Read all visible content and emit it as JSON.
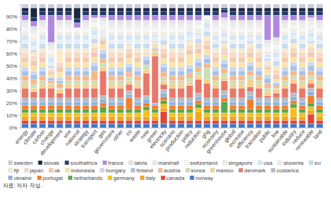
{
  "chart_data": {
    "type": "bar",
    "stacked": true,
    "grid": true,
    "legend": "bottom",
    "annotations": [
      "자료: 저자 작성."
    ],
    "categories": [
      "energy",
      "climate",
      "carbon",
      "change",
      "development",
      "use",
      "national",
      "strategy",
      "transport",
      "gas",
      "government",
      "other",
      "co",
      "waste",
      "new",
      "green",
      "electricity",
      "scenario",
      "production",
      "policy",
      "reduction",
      "ghg",
      "economy",
      "greenhouse",
      "global",
      "increase",
      "efficiency",
      "transition",
      "public",
      "low",
      "sustainable",
      "industry",
      "reduce",
      "renewable",
      "land"
    ],
    "ylim": [
      0,
      100
    ],
    "yticks": [
      {
        "value": 0,
        "label": "0%"
      },
      {
        "value": 10,
        "label": "10%"
      },
      {
        "value": 20,
        "label": "20%"
      },
      {
        "value": 30,
        "label": "30%"
      },
      {
        "value": 40,
        "label": "40%"
      },
      {
        "value": 50,
        "label": "50%"
      },
      {
        "value": 60,
        "label": "60%"
      },
      {
        "value": 70,
        "label": "70%"
      },
      {
        "value": 80,
        "label": "80%"
      },
      {
        "value": 90,
        "label": "90%"
      }
    ],
    "series": [
      {
        "name": "sweden",
        "color": "#c9cdd8",
        "values": [
          3,
          3,
          3,
          3,
          3,
          3,
          3,
          3,
          3,
          3,
          3,
          3,
          3,
          3,
          3,
          3,
          3,
          3,
          3,
          3,
          3,
          3,
          3,
          3,
          3,
          3,
          3,
          3,
          3,
          3,
          3,
          3,
          3,
          3,
          3
        ]
      },
      {
        "name": "slovak",
        "color": "#1c2541",
        "values": [
          3,
          8,
          3,
          3,
          3,
          3,
          9,
          3,
          3,
          3,
          3,
          3,
          3,
          3,
          3,
          3,
          3,
          3,
          3,
          3,
          3,
          3,
          3,
          1,
          3,
          3,
          3,
          3,
          3,
          3,
          3,
          3,
          3,
          3,
          3
        ]
      },
      {
        "name": "southafrica",
        "color": "#233a6b",
        "values": [
          3,
          3,
          3,
          3,
          3,
          3,
          3,
          3,
          3,
          3,
          3,
          3,
          3,
          3,
          3,
          3,
          3,
          3,
          3,
          3,
          3,
          3,
          3,
          3,
          3,
          3,
          3,
          3,
          3,
          3,
          3,
          3,
          3,
          3,
          3
        ]
      },
      {
        "name": "france",
        "color": "#b088e0",
        "values": [
          4,
          4,
          4,
          22,
          4,
          4,
          4,
          4,
          2,
          2,
          4,
          4,
          4,
          4,
          4,
          4,
          4,
          4,
          4,
          4,
          4,
          0,
          4,
          4,
          4,
          4,
          4,
          4,
          20,
          18,
          4,
          4,
          4,
          2,
          4
        ]
      },
      {
        "name": "latvia",
        "color": "#e4e4e4",
        "values": [
          3,
          3,
          3,
          3,
          3,
          3,
          0,
          3,
          1,
          3,
          3,
          3,
          3,
          3,
          3,
          3,
          3,
          3,
          3,
          3,
          1,
          0,
          3,
          3,
          3,
          3,
          3,
          3,
          3,
          3,
          3,
          1,
          3,
          3,
          3
        ]
      },
      {
        "name": "marshall",
        "color": "#ececec",
        "values": [
          3,
          3,
          3,
          3,
          3,
          3,
          0,
          3,
          3,
          3,
          3,
          3,
          3,
          3,
          3,
          3,
          3,
          3,
          3,
          3,
          3,
          0,
          3,
          3,
          3,
          3,
          3,
          3,
          3,
          3,
          3,
          3,
          3,
          3,
          3
        ]
      },
      {
        "name": "switzerland",
        "color": "#f5f5f5",
        "values": [
          3,
          3,
          3,
          3,
          3,
          3,
          3,
          3,
          3,
          3,
          3,
          3,
          3,
          3,
          3,
          3,
          3,
          3,
          3,
          0,
          3,
          3,
          3,
          3,
          3,
          3,
          3,
          3,
          3,
          3,
          3,
          3,
          3,
          3,
          3
        ]
      },
      {
        "name": "singapore",
        "color": "#f0ede4",
        "values": [
          3,
          3,
          3,
          3,
          3,
          3,
          3,
          3,
          3,
          3,
          3,
          3,
          3,
          3,
          3,
          3,
          3,
          3,
          3,
          3,
          3,
          3,
          3,
          3,
          3,
          3,
          3,
          3,
          3,
          3,
          3,
          3,
          3,
          3,
          3
        ]
      },
      {
        "name": "usa",
        "color": "#d4e6f5",
        "values": [
          4,
          4,
          4,
          4,
          4,
          4,
          4,
          4,
          4,
          1,
          4,
          4,
          4,
          4,
          4,
          2,
          1,
          4,
          4,
          4,
          2,
          4,
          4,
          4,
          4,
          4,
          2,
          4,
          2,
          4,
          4,
          2,
          4,
          4,
          4
        ]
      },
      {
        "name": "slovenia",
        "color": "#e8eef6",
        "values": [
          3,
          3,
          3,
          3,
          3,
          3,
          3,
          3,
          3,
          3,
          3,
          3,
          3,
          3,
          3,
          3,
          3,
          3,
          3,
          3,
          3,
          3,
          3,
          3,
          3,
          3,
          3,
          3,
          1,
          3,
          3,
          3,
          3,
          3,
          3
        ]
      },
      {
        "name": "eu",
        "color": "#c6dcf0",
        "values": [
          4,
          2,
          4,
          2,
          4,
          4,
          4,
          4,
          4,
          1,
          4,
          4,
          1,
          4,
          4,
          1,
          4,
          4,
          4,
          1,
          4,
          4,
          4,
          2,
          4,
          4,
          2,
          4,
          2,
          4,
          4,
          4,
          4,
          2,
          4
        ]
      },
      {
        "name": "fiji",
        "color": "#fbe9c8",
        "values": [
          3,
          3,
          3,
          1,
          11,
          3,
          3,
          3,
          3,
          0,
          3,
          3,
          3,
          3,
          3,
          1,
          3,
          3,
          3,
          3,
          0,
          3,
          3,
          3,
          3,
          3,
          3,
          3,
          3,
          3,
          3,
          3,
          3,
          3,
          3
        ]
      },
      {
        "name": "japan",
        "color": "#f7d9c4",
        "values": [
          4,
          4,
          4,
          2,
          4,
          4,
          4,
          4,
          4,
          1,
          4,
          4,
          4,
          4,
          1,
          1,
          4,
          4,
          4,
          4,
          4,
          4,
          4,
          4,
          4,
          4,
          4,
          4,
          2,
          4,
          4,
          4,
          4,
          4,
          4
        ]
      },
      {
        "name": "uk",
        "color": "#f2c9b0",
        "values": [
          4,
          4,
          4,
          2,
          4,
          4,
          4,
          4,
          4,
          4,
          4,
          4,
          4,
          4,
          1,
          1,
          4,
          4,
          4,
          4,
          4,
          4,
          4,
          2,
          4,
          4,
          4,
          4,
          2,
          4,
          4,
          4,
          4,
          4,
          4
        ]
      },
      {
        "name": "indonesia",
        "color": "#fbe3a8",
        "values": [
          4,
          4,
          4,
          2,
          4,
          4,
          4,
          4,
          4,
          4,
          4,
          4,
          4,
          4,
          1,
          1,
          4,
          4,
          4,
          8,
          4,
          4,
          4,
          4,
          4,
          4,
          4,
          4,
          4,
          2,
          4,
          4,
          4,
          4,
          4
        ]
      },
      {
        "name": "hungary",
        "color": "#c9d8ee",
        "values": [
          3,
          3,
          3,
          1,
          3,
          3,
          3,
          3,
          3,
          3,
          3,
          3,
          3,
          3,
          3,
          1,
          3,
          3,
          3,
          3,
          3,
          3,
          3,
          3,
          3,
          3,
          3,
          3,
          3,
          1,
          3,
          3,
          3,
          3,
          3
        ]
      },
      {
        "name": "finland",
        "color": "#a9c2e6",
        "values": [
          4,
          4,
          4,
          2,
          2,
          4,
          4,
          4,
          4,
          4,
          4,
          4,
          4,
          4,
          4,
          1,
          4,
          4,
          4,
          4,
          4,
          4,
          4,
          4,
          4,
          4,
          4,
          4,
          4,
          2,
          4,
          4,
          4,
          4,
          4
        ]
      },
      {
        "name": "austria",
        "color": "#f6b98c",
        "values": [
          4,
          4,
          4,
          2,
          4,
          4,
          4,
          4,
          8,
          4,
          4,
          4,
          4,
          4,
          1,
          1,
          4,
          4,
          4,
          4,
          4,
          4,
          4,
          4,
          4,
          4,
          4,
          4,
          4,
          2,
          4,
          4,
          4,
          4,
          4
        ]
      },
      {
        "name": "korea",
        "color": "#c8e0b8",
        "values": [
          3,
          3,
          3,
          1,
          1,
          3,
          3,
          3,
          3,
          3,
          3,
          3,
          3,
          3,
          3,
          1,
          3,
          3,
          3,
          3,
          3,
          9,
          3,
          3,
          3,
          3,
          3,
          3,
          3,
          1,
          3,
          3,
          3,
          3,
          3
        ]
      },
      {
        "name": "maxico",
        "color": "#f9cf8a",
        "values": [
          3,
          3,
          3,
          3,
          3,
          3,
          3,
          3,
          3,
          3,
          3,
          3,
          3,
          3,
          3,
          3,
          3,
          3,
          3,
          3,
          3,
          3,
          3,
          3,
          3,
          3,
          6,
          3,
          3,
          3,
          3,
          3,
          3,
          3,
          3
        ]
      },
      {
        "name": "denmark",
        "color": "#e9786a",
        "values": [
          8,
          5,
          8,
          8,
          4,
          8,
          8,
          8,
          8,
          20,
          8,
          8,
          5,
          8,
          18,
          38,
          4,
          8,
          8,
          10,
          11,
          12,
          8,
          8,
          8,
          8,
          4,
          8,
          2,
          4,
          8,
          8,
          8,
          4,
          8
        ]
      },
      {
        "name": "costarica",
        "color": "#b7bcc5",
        "values": [
          3,
          3,
          3,
          3,
          3,
          3,
          3,
          3,
          3,
          3,
          3,
          3,
          3,
          3,
          3,
          1,
          3,
          3,
          3,
          3,
          3,
          3,
          3,
          3,
          3,
          3,
          3,
          3,
          3,
          3,
          3,
          3,
          3,
          3,
          3
        ]
      },
      {
        "name": "ukraine",
        "color": "#8fb2e0",
        "values": [
          3,
          3,
          3,
          3,
          3,
          3,
          3,
          3,
          3,
          3,
          3,
          3,
          3,
          3,
          3,
          1,
          3,
          3,
          3,
          3,
          3,
          3,
          3,
          3,
          3,
          3,
          3,
          3,
          3,
          3,
          3,
          3,
          3,
          3,
          3
        ]
      },
      {
        "name": "portugal",
        "color": "#f07f2d",
        "values": [
          3,
          3,
          3,
          3,
          3,
          3,
          3,
          3,
          3,
          3,
          3,
          3,
          9,
          3,
          3,
          3,
          3,
          3,
          3,
          3,
          3,
          3,
          3,
          3,
          3,
          3,
          8,
          3,
          3,
          3,
          3,
          3,
          3,
          6,
          3
        ]
      },
      {
        "name": "netherlands",
        "color": "#5aa64a",
        "values": [
          3,
          3,
          3,
          3,
          3,
          3,
          3,
          3,
          3,
          5,
          3,
          3,
          3,
          3,
          3,
          3,
          3,
          3,
          3,
          3,
          3,
          3,
          3,
          9,
          3,
          3,
          3,
          3,
          3,
          3,
          3,
          3,
          3,
          3,
          3
        ]
      },
      {
        "name": "germany",
        "color": "#f5c117",
        "values": [
          3,
          3,
          3,
          3,
          3,
          3,
          3,
          3,
          3,
          3,
          3,
          3,
          3,
          3,
          5,
          3,
          3,
          3,
          3,
          3,
          3,
          3,
          3,
          3,
          3,
          3,
          3,
          3,
          3,
          3,
          3,
          7,
          3,
          3,
          3
        ]
      },
      {
        "name": "italy",
        "color": "#f2a71b",
        "values": [
          3,
          3,
          3,
          3,
          3,
          3,
          3,
          3,
          3,
          3,
          3,
          3,
          3,
          3,
          3,
          3,
          3,
          3,
          3,
          3,
          7,
          3,
          3,
          3,
          3,
          3,
          3,
          3,
          3,
          3,
          3,
          3,
          3,
          3,
          3
        ]
      },
      {
        "name": "canada",
        "color": "#e0463a",
        "values": [
          3,
          3,
          3,
          3,
          3,
          3,
          3,
          3,
          3,
          3,
          3,
          3,
          3,
          3,
          3,
          3,
          10,
          3,
          3,
          3,
          3,
          3,
          3,
          3,
          3,
          3,
          3,
          3,
          3,
          3,
          3,
          3,
          3,
          8,
          3
        ]
      },
      {
        "name": "norway",
        "color": "#3d78c9",
        "values": [
          3,
          3,
          3,
          3,
          3,
          3,
          3,
          3,
          3,
          3,
          3,
          3,
          3,
          3,
          3,
          3,
          3,
          3,
          3,
          3,
          3,
          3,
          3,
          3,
          3,
          3,
          3,
          3,
          3,
          3,
          3,
          3,
          3,
          3,
          3
        ]
      }
    ]
  }
}
